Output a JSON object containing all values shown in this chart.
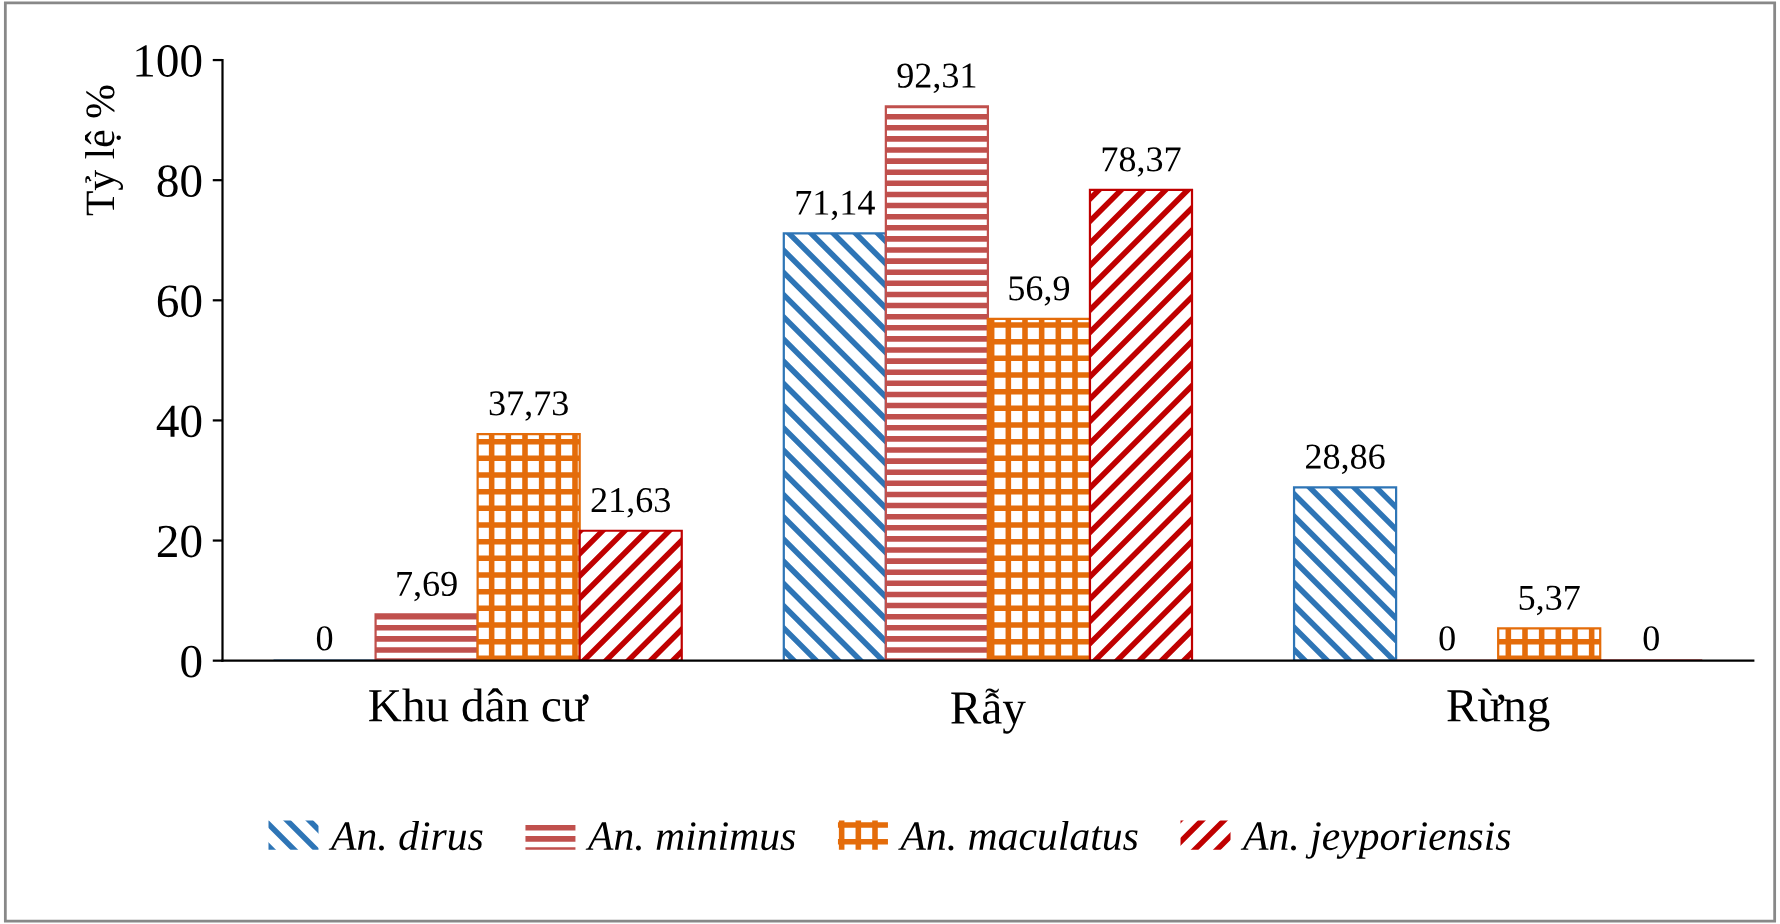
{
  "chart_data": {
    "type": "bar",
    "ylabel": "Tỷ lệ %",
    "categories": [
      "Khu dân cư",
      "Rẫy",
      "Rừng"
    ],
    "series": [
      {
        "name": "An. dirus",
        "color": "#2e75b6",
        "values": [
          0,
          71.14,
          28.86
        ],
        "value_labels": [
          "0",
          "71,14",
          "28,86"
        ]
      },
      {
        "name": "An. minimus",
        "color": "#c0504d",
        "values": [
          7.69,
          92.31,
          0
        ],
        "value_labels": [
          "7,69",
          "92,31",
          "0"
        ]
      },
      {
        "name": "An. maculatus",
        "color": "#e46c0a",
        "values": [
          37.73,
          56.9,
          5.37
        ],
        "value_labels": [
          "37,73",
          "56,9",
          "5,37"
        ]
      },
      {
        "name": "An. jeyporiensis",
        "color": "#c00000",
        "values": [
          21.63,
          78.37,
          0
        ],
        "value_labels": [
          "21,63",
          "78,37",
          "0"
        ]
      }
    ],
    "ylim": [
      0,
      100
    ],
    "yticks": [
      0,
      20,
      40,
      60,
      80,
      100
    ],
    "grid": false,
    "legend": "bottom"
  }
}
